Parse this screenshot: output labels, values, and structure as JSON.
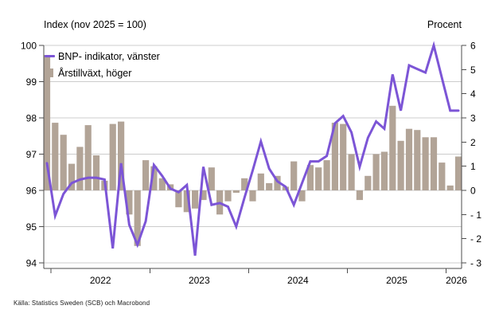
{
  "source": "Källa: Statistics Sweden (SCB)  och Macrobond",
  "colors": {
    "line": "#7c55d6",
    "bar": "#b2a497",
    "grid": "#cccccc",
    "axis": "#4d4d4d",
    "background": "#ffffff"
  },
  "chart_data": {
    "type": "bar+line",
    "title": "",
    "left_axis": {
      "title": "Index (nov 2025 = 100)",
      "min": 94,
      "max": 100,
      "ticks": [
        94,
        95,
        96,
        97,
        98,
        99,
        100
      ]
    },
    "right_axis": {
      "title": "Procent",
      "min": -3,
      "max": 6,
      "ticks": [
        -3,
        -2,
        -1,
        0,
        1,
        2,
        3,
        4,
        5,
        6
      ]
    },
    "x_axis": {
      "year_tick_labels": [
        "2022",
        "2023",
        "2024",
        "2025",
        "2026"
      ]
    },
    "grid": "horizontal",
    "legend_position": "top-left",
    "months": [
      "2021-12",
      "2022-01",
      "2022-02",
      "2022-03",
      "2022-04",
      "2022-05",
      "2022-06",
      "2022-07",
      "2022-08",
      "2022-09",
      "2022-10",
      "2022-11",
      "2022-12",
      "2023-01",
      "2023-02",
      "2023-03",
      "2023-04",
      "2023-05",
      "2023-06",
      "2023-07",
      "2023-08",
      "2023-09",
      "2023-10",
      "2023-11",
      "2023-12",
      "2024-01",
      "2024-02",
      "2024-03",
      "2024-04",
      "2024-05",
      "2024-06",
      "2024-07",
      "2024-08",
      "2024-09",
      "2024-10",
      "2024-11",
      "2024-12",
      "2025-01",
      "2025-02",
      "2025-03",
      "2025-04",
      "2025-05",
      "2025-06",
      "2025-07",
      "2025-08",
      "2025-09",
      "2025-10",
      "2025-11",
      "2025-12",
      "2026-01",
      "2026-02"
    ],
    "series": [
      {
        "name": "BNP- indikator, vänster",
        "type": "line",
        "axis": "left",
        "color": "#7c55d6",
        "values": [
          96.75,
          95.3,
          95.9,
          96.2,
          96.3,
          96.35,
          96.35,
          96.3,
          94.4,
          96.75,
          95.05,
          94.5,
          95.15,
          96.7,
          96.4,
          96.05,
          95.95,
          96.15,
          94.2,
          96.65,
          95.6,
          95.65,
          95.55,
          95.0,
          95.8,
          96.55,
          97.35,
          96.6,
          96.25,
          96.1,
          95.6,
          96.2,
          96.8,
          96.8,
          96.95,
          97.85,
          98.05,
          97.6,
          96.65,
          97.45,
          97.9,
          97.7,
          99.2,
          98.2,
          99.45,
          99.35,
          99.25,
          100.0,
          99.1,
          98.2,
          98.2
        ]
      },
      {
        "name": "Årstillväxt, höger",
        "type": "bar",
        "axis": "right",
        "color": "#b2a497",
        "values": [
          5.6,
          2.8,
          2.3,
          1.1,
          1.8,
          2.7,
          1.45,
          0.4,
          2.75,
          2.85,
          -1.0,
          -2.3,
          1.25,
          1.0,
          0.5,
          0.25,
          -0.7,
          -0.9,
          -0.75,
          -0.4,
          0.95,
          -1.0,
          -0.45,
          -0.1,
          0.5,
          -0.45,
          0.7,
          0.3,
          0.6,
          0.15,
          1.2,
          -0.45,
          1.05,
          0.95,
          1.25,
          2.8,
          2.75,
          1.5,
          -0.4,
          0.6,
          1.5,
          1.6,
          3.5,
          2.05,
          2.55,
          2.5,
          2.2,
          2.2,
          1.15,
          0.2,
          1.4
        ]
      }
    ]
  }
}
